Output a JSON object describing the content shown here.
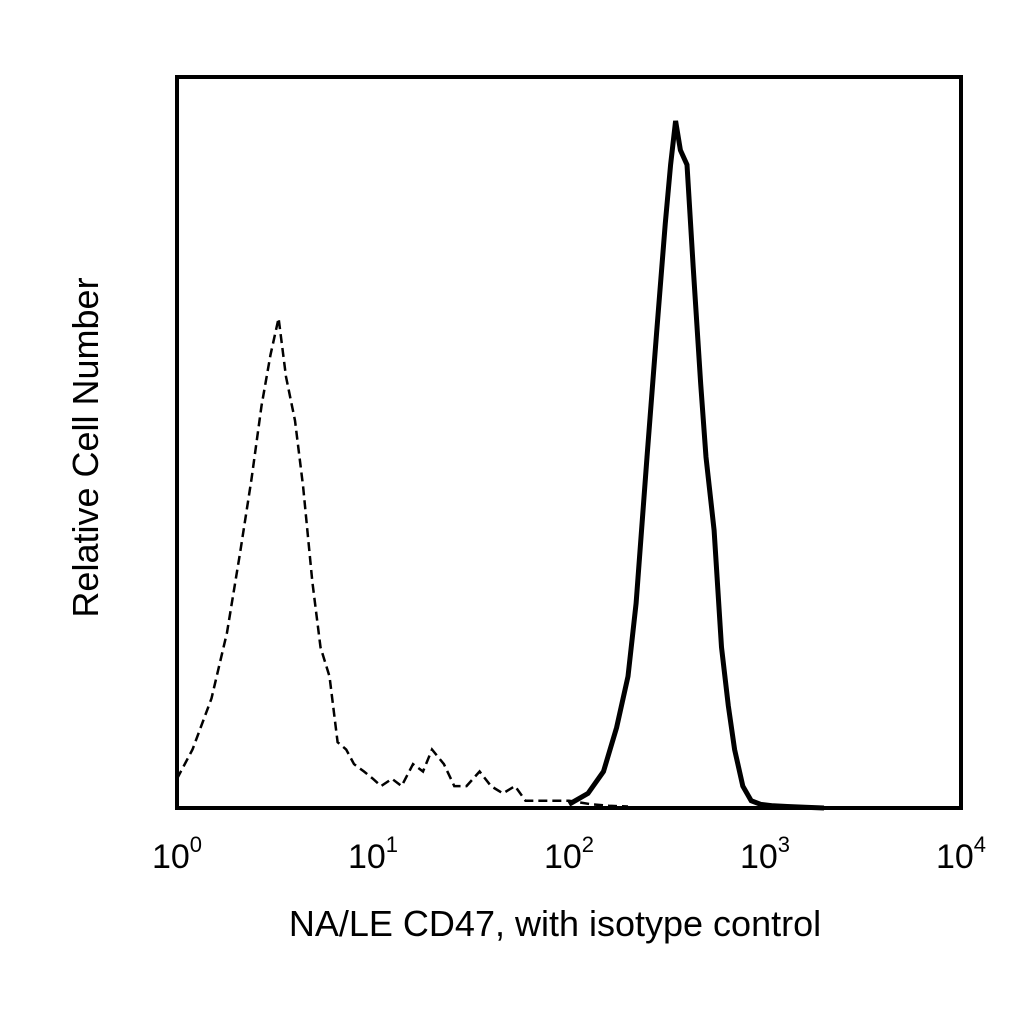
{
  "chart_data": {
    "type": "line",
    "xscale": "log",
    "xlim": [
      1,
      10000
    ],
    "ylim": [
      0,
      100
    ],
    "grid": false,
    "legend": "none",
    "xlabel": "NA/LE CD47, with isotype control",
    "ylabel": "Relative Cell Number",
    "xticks": [
      {
        "value": 1,
        "base": "10",
        "exp": "0"
      },
      {
        "value": 10,
        "base": "10",
        "exp": "1"
      },
      {
        "value": 100,
        "base": "10",
        "exp": "2"
      },
      {
        "value": 1000,
        "base": "10",
        "exp": "3"
      },
      {
        "value": 10000,
        "base": "10",
        "exp": "4"
      }
    ],
    "series": [
      {
        "style": "dashed",
        "color": "#000000",
        "x": [
          1.0,
          1.2,
          1.5,
          1.8,
          2.1,
          2.4,
          2.7,
          3.0,
          3.3,
          3.6,
          4.0,
          4.4,
          4.9,
          5.4,
          6.0,
          6.6,
          7.3,
          8.0,
          9.0,
          10,
          11,
          12.5,
          14,
          16,
          18,
          20,
          23,
          26,
          30,
          35,
          40,
          46,
          53,
          60,
          70,
          80,
          100,
          130,
          160,
          200
        ],
        "y": [
          4,
          8,
          15,
          24,
          35,
          45,
          55,
          62,
          67,
          59,
          53,
          44,
          31,
          22,
          18,
          9,
          8,
          6,
          5,
          4,
          3,
          4,
          3,
          6,
          5,
          8,
          6,
          3,
          3,
          5,
          3,
          2,
          3,
          1,
          1,
          1,
          1,
          0.5,
          0.3,
          0.2
        ]
      },
      {
        "style": "solid",
        "color": "#000000",
        "x": [
          100,
          125,
          150,
          175,
          200,
          220,
          250,
          280,
          310,
          330,
          350,
          370,
          400,
          430,
          470,
          500,
          550,
          600,
          650,
          700,
          770,
          850,
          950,
          1100,
          1300,
          1600,
          2000
        ],
        "y": [
          0.5,
          2,
          5,
          11,
          18,
          28,
          48,
          65,
          80,
          88,
          94,
          90,
          88,
          74,
          58,
          48,
          38,
          22,
          14,
          8,
          3,
          1,
          0.5,
          0.3,
          0.2,
          0.1,
          0
        ]
      }
    ]
  }
}
